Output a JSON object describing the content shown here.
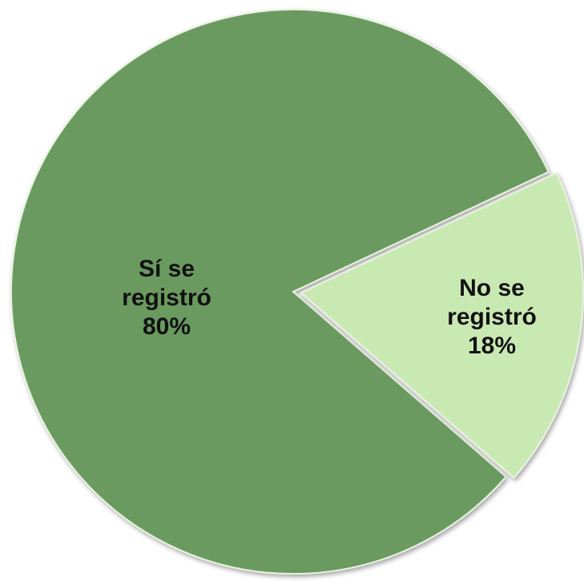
{
  "chart_data": {
    "type": "pie",
    "categories": [
      "Sí se registró",
      "No se registró"
    ],
    "values": [
      80,
      18
    ],
    "value_labels": [
      "80%",
      "18%"
    ],
    "colors": [
      "#6a9a5e",
      "#c9e9b3"
    ]
  }
}
